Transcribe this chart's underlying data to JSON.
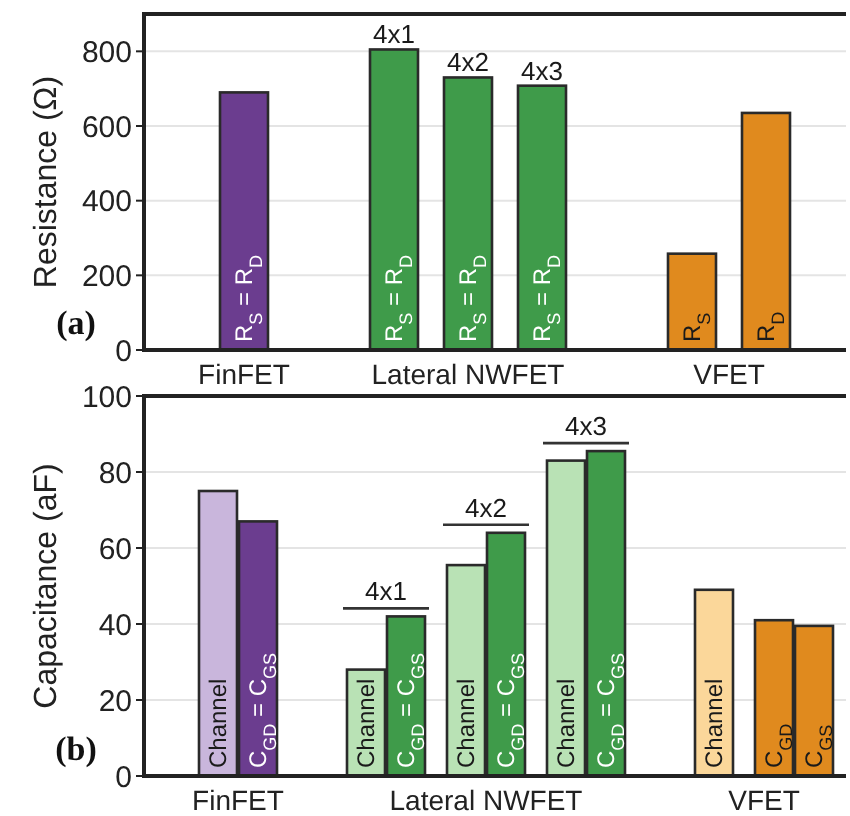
{
  "chart_data": [
    {
      "type": "bar",
      "ylabel": "Resistance (Ω)",
      "categories": [
        "FinFET",
        "Lateral NWFET",
        "VFET"
      ],
      "ylim": [
        0,
        900
      ],
      "yticks": [
        0,
        200,
        400,
        600,
        800
      ],
      "grid": "y",
      "legend": false,
      "annotations": [
        "(a)",
        "4x1",
        "4x2",
        "4x3"
      ],
      "series": [
        {
          "name": "R$_{S}$ = R$_{D}$",
          "colors": [
            "#6b3d8f",
            "#3f9b4a",
            null
          ],
          "values": [
            690,
            805,
            null
          ]
        },
        {
          "name": "R$_{S}$ = R$_{D}$",
          "color": "#3f9b4a",
          "values": [
            null,
            730,
            null
          ]
        },
        {
          "name": "R$_{S}$ = R$_{D}$",
          "color": "#3f9b4a",
          "values": [
            null,
            708,
            null
          ]
        },
        {
          "name": "R$_{S}$",
          "color": "#e08a1e",
          "values": [
            null,
            null,
            258
          ]
        },
        {
          "name": "R$_{D}$",
          "color": "#e08a1e",
          "values": [
            null,
            null,
            635
          ]
        }
      ]
    },
    {
      "type": "bar",
      "ylabel": "Capacitance (aF)",
      "categories": [
        "FinFET",
        "Lateral NWFET",
        "VFET"
      ],
      "ylim": [
        0,
        100
      ],
      "yticks": [
        0,
        20,
        40,
        60,
        80,
        100
      ],
      "grid": "y",
      "legend": false,
      "annotations": [
        "(b)",
        "4x1",
        "4x2",
        "4x3"
      ],
      "series": [
        {
          "name": "Channel",
          "colors": [
            "#c9b6dc",
            "#b9e2b5",
            "#fbd79a"
          ],
          "values": [
            75,
            28,
            49
          ]
        },
        {
          "name": "C$_{GD}$ = C$_{GS}$",
          "colors": [
            "#6b3d8f",
            "#3f9b4a",
            null
          ],
          "values": [
            67,
            42,
            null
          ]
        },
        {
          "name": "Channel",
          "color": "#b9e2b5",
          "values": [
            null,
            55.5,
            null
          ]
        },
        {
          "name": "C$_{GD}$ = C$_{GS}$",
          "color": "#3f9b4a",
          "values": [
            null,
            64,
            null
          ]
        },
        {
          "name": "Channel",
          "color": "#b9e2b5",
          "values": [
            null,
            83,
            null
          ]
        },
        {
          "name": "C$_{GD}$ = C$_{GS}$",
          "color": "#3f9b4a",
          "values": [
            null,
            85.5,
            null
          ]
        },
        {
          "name": "C$_{GD}$",
          "color": "#e08a1e",
          "values": [
            null,
            null,
            41
          ]
        },
        {
          "name": "C$_{GS}$",
          "color": "#e08a1e",
          "values": [
            null,
            null,
            39.5
          ]
        }
      ]
    }
  ]
}
